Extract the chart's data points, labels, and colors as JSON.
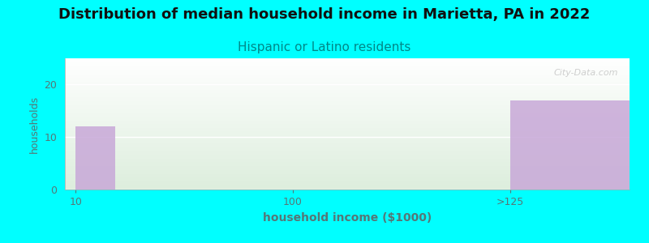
{
  "title": "Distribution of median household income in Marietta, PA in 2022",
  "subtitle": "Hispanic or Latino residents",
  "xlabel": "household income ($1000)",
  "ylabel": "households",
  "background_color": "#00FFFF",
  "bar_color": "#C8A8D8",
  "chart_bg_top": "#FFFFFF",
  "chart_bg_bottom": "#DDEEDD",
  "watermark": "City-Data.com",
  "bar1_height": 12,
  "bar2_height": 17,
  "xtick_labels": [
    "10",
    "100",
    ">125"
  ],
  "xtick_vals": [
    0,
    1,
    2
  ],
  "xlim": [
    -0.05,
    2.55
  ],
  "ylim": [
    0,
    25
  ],
  "yticks": [
    0,
    10,
    20
  ],
  "grid_color": "#FFFFFF",
  "title_fontsize": 13,
  "subtitle_fontsize": 11,
  "subtitle_color": "#008888",
  "axis_label_color": "#557777",
  "tick_color": "#557777",
  "tick_fontsize": 9
}
